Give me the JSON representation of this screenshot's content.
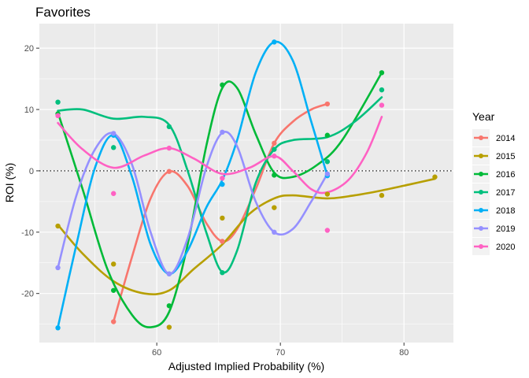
{
  "chart_data": {
    "type": "scatter",
    "title": "Favorites",
    "xlabel": "Adjusted Implied Probability (%)",
    "ylabel": "ROI (%)",
    "xlim": [
      50.5,
      84.0
    ],
    "ylim": [
      -28.0,
      24.0
    ],
    "x_ticks": [
      60,
      70,
      80
    ],
    "y_ticks": [
      -20,
      -10,
      0,
      10,
      20
    ],
    "grid": true,
    "reference_line": 0,
    "legend_title": "Year",
    "legend_position": "right",
    "series": [
      {
        "name": "2014",
        "color": "#F8766D",
        "points": [
          [
            56.5,
            -24.6
          ],
          [
            61.0,
            -0.1
          ],
          [
            65.3,
            -11.5
          ],
          [
            69.5,
            4.5
          ],
          [
            73.8,
            10.9
          ]
        ],
        "curve": [
          [
            56.5,
            -24.6
          ],
          [
            58.0,
            -14.0
          ],
          [
            59.5,
            -4.5
          ],
          [
            61.0,
            -0.1
          ],
          [
            62.5,
            -2.5
          ],
          [
            64.0,
            -8.5
          ],
          [
            65.3,
            -11.5
          ],
          [
            66.5,
            -9.5
          ],
          [
            68.0,
            -3.0
          ],
          [
            69.5,
            4.5
          ],
          [
            71.0,
            8.0
          ],
          [
            72.5,
            10.0
          ],
          [
            73.8,
            10.9
          ]
        ]
      },
      {
        "name": "2015",
        "color": "#B79F00",
        "points": [
          [
            52.0,
            -9.0
          ],
          [
            56.5,
            -15.2
          ],
          [
            61.0,
            -25.5
          ],
          [
            65.3,
            -7.7
          ],
          [
            69.5,
            -6.0
          ],
          [
            73.8,
            -3.8
          ],
          [
            78.2,
            -4.0
          ],
          [
            82.5,
            -1.0
          ]
        ],
        "curve": [
          [
            52.0,
            -8.8
          ],
          [
            54.0,
            -13.5
          ],
          [
            56.5,
            -18.0
          ],
          [
            59.0,
            -20.0
          ],
          [
            61.0,
            -19.5
          ],
          [
            63.0,
            -16.0
          ],
          [
            65.3,
            -12.0
          ],
          [
            67.5,
            -7.0
          ],
          [
            69.5,
            -4.5
          ],
          [
            71.0,
            -4.0
          ],
          [
            73.8,
            -4.5
          ],
          [
            76.0,
            -4.0
          ],
          [
            78.2,
            -3.2
          ],
          [
            80.5,
            -2.2
          ],
          [
            82.5,
            -1.3
          ]
        ]
      },
      {
        "name": "2016",
        "color": "#00BA38",
        "points": [
          [
            52.0,
            9.3
          ],
          [
            56.5,
            -19.5
          ],
          [
            61.0,
            -22.0
          ],
          [
            65.3,
            14.0
          ],
          [
            69.5,
            -0.7
          ],
          [
            73.8,
            5.8
          ],
          [
            78.2,
            16.0
          ]
        ],
        "curve": [
          [
            52.0,
            9.5
          ],
          [
            54.0,
            -3.0
          ],
          [
            56.0,
            -16.0
          ],
          [
            58.0,
            -23.5
          ],
          [
            59.5,
            -25.5
          ],
          [
            61.0,
            -23.0
          ],
          [
            62.5,
            -12.0
          ],
          [
            64.0,
            4.0
          ],
          [
            65.3,
            13.5
          ],
          [
            66.5,
            13.5
          ],
          [
            68.0,
            6.0
          ],
          [
            69.5,
            -0.3
          ],
          [
            71.0,
            -1.0
          ],
          [
            73.0,
            1.0
          ],
          [
            75.0,
            5.0
          ],
          [
            78.2,
            16.0
          ]
        ]
      },
      {
        "name": "2017",
        "color": "#00BF7D",
        "points": [
          [
            52.0,
            11.2
          ],
          [
            56.5,
            3.8
          ],
          [
            61.0,
            7.2
          ],
          [
            65.3,
            -16.6
          ],
          [
            69.5,
            3.5
          ],
          [
            73.8,
            1.5
          ],
          [
            78.2,
            13.2
          ]
        ],
        "curve": [
          [
            52.0,
            9.8
          ],
          [
            54.0,
            10.0
          ],
          [
            56.5,
            8.5
          ],
          [
            59.0,
            8.8
          ],
          [
            61.0,
            7.5
          ],
          [
            62.5,
            0.0
          ],
          [
            64.0,
            -10.0
          ],
          [
            65.3,
            -16.5
          ],
          [
            66.5,
            -13.0
          ],
          [
            68.0,
            -2.0
          ],
          [
            69.5,
            3.5
          ],
          [
            71.0,
            5.0
          ],
          [
            73.8,
            5.5
          ],
          [
            76.0,
            8.0
          ],
          [
            78.2,
            12.0
          ]
        ]
      },
      {
        "name": "2018",
        "color": "#00B0F6",
        "points": [
          [
            52.0,
            -25.6
          ],
          [
            56.5,
            5.8
          ],
          [
            61.0,
            -16.8
          ],
          [
            65.3,
            -2.2
          ],
          [
            69.5,
            21.0
          ],
          [
            73.8,
            -0.8
          ]
        ],
        "curve": [
          [
            52.0,
            -25.5
          ],
          [
            53.5,
            -12.0
          ],
          [
            55.0,
            0.5
          ],
          [
            56.5,
            5.8
          ],
          [
            58.0,
            -1.0
          ],
          [
            59.5,
            -12.0
          ],
          [
            61.0,
            -16.8
          ],
          [
            62.5,
            -13.0
          ],
          [
            64.0,
            -6.0
          ],
          [
            65.3,
            -1.5
          ],
          [
            66.5,
            5.0
          ],
          [
            68.0,
            16.0
          ],
          [
            69.5,
            21.0
          ],
          [
            71.0,
            18.0
          ],
          [
            72.5,
            8.0
          ],
          [
            73.8,
            -0.8
          ]
        ]
      },
      {
        "name": "2019",
        "color": "#9590FF",
        "points": [
          [
            52.0,
            -15.8
          ],
          [
            56.5,
            6.1
          ],
          [
            61.0,
            -16.8
          ],
          [
            65.3,
            6.3
          ],
          [
            69.5,
            -10.0
          ],
          [
            73.8,
            -0.5
          ]
        ],
        "curve": [
          [
            52.0,
            -15.8
          ],
          [
            53.5,
            -4.0
          ],
          [
            55.0,
            3.5
          ],
          [
            56.5,
            6.1
          ],
          [
            58.0,
            1.0
          ],
          [
            59.5,
            -10.0
          ],
          [
            61.0,
            -16.8
          ],
          [
            62.5,
            -11.0
          ],
          [
            64.0,
            0.5
          ],
          [
            65.3,
            6.2
          ],
          [
            66.5,
            4.0
          ],
          [
            68.0,
            -5.0
          ],
          [
            69.5,
            -10.0
          ],
          [
            71.0,
            -9.5
          ],
          [
            72.5,
            -5.0
          ],
          [
            73.8,
            -0.5
          ]
        ]
      },
      {
        "name": "2020",
        "color": "#FF61C3",
        "points": [
          [
            52.0,
            9.0
          ],
          [
            56.5,
            -3.7
          ],
          [
            61.0,
            3.7
          ],
          [
            65.3,
            -1.2
          ],
          [
            69.5,
            2.4
          ],
          [
            73.8,
            -9.7
          ],
          [
            78.2,
            10.7
          ]
        ],
        "curve": [
          [
            52.0,
            7.8
          ],
          [
            54.0,
            3.5
          ],
          [
            56.5,
            0.5
          ],
          [
            59.0,
            2.5
          ],
          [
            61.0,
            3.7
          ],
          [
            63.0,
            2.0
          ],
          [
            65.3,
            -0.5
          ],
          [
            67.5,
            0.5
          ],
          [
            69.5,
            2.4
          ],
          [
            71.0,
            0.0
          ],
          [
            72.5,
            -3.0
          ],
          [
            73.8,
            -3.5
          ],
          [
            75.5,
            -1.5
          ],
          [
            77.0,
            3.0
          ],
          [
            78.2,
            8.8
          ]
        ]
      }
    ]
  }
}
